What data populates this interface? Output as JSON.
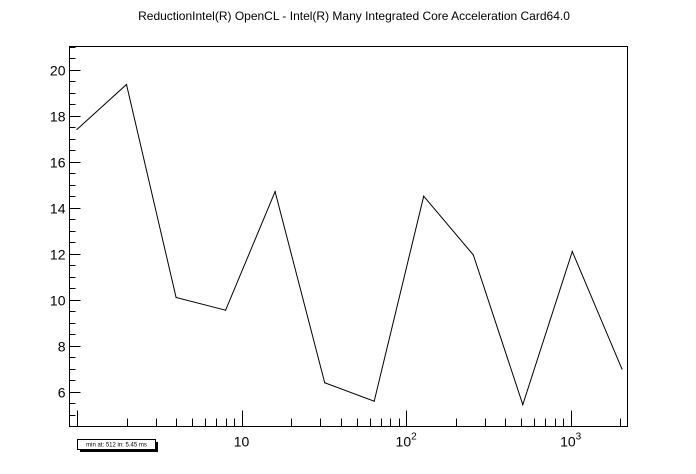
{
  "chart_data": {
    "type": "line",
    "title": "ReductionIntel(R) OpenCL - Intel(R) Many Integrated Core Acceleration Card64.0",
    "xscale": "log",
    "xlim": [
      1,
      2200
    ],
    "ylim": [
      4.5,
      21
    ],
    "x_tick_labels": [
      {
        "value": 10,
        "base": "10",
        "exp": ""
      },
      {
        "value": 100,
        "base": "10",
        "exp": "2"
      },
      {
        "value": 1000,
        "base": "10",
        "exp": "3"
      }
    ],
    "y_ticks": [
      6,
      8,
      10,
      12,
      14,
      16,
      18,
      20
    ],
    "y_tick_labels": [
      "6",
      "8",
      "10",
      "12",
      "14",
      "16",
      "18",
      "20"
    ],
    "series": [
      {
        "x": [
          1,
          2,
          4,
          8,
          16,
          32,
          64,
          128,
          256,
          512,
          1024,
          2048
        ],
        "values": [
          17.4,
          19.35,
          10.1,
          9.55,
          14.7,
          6.4,
          5.6,
          14.5,
          11.95,
          5.45,
          12.1,
          7.0
        ]
      }
    ],
    "annotation": "min at: 512 in: 5.45 ms"
  }
}
